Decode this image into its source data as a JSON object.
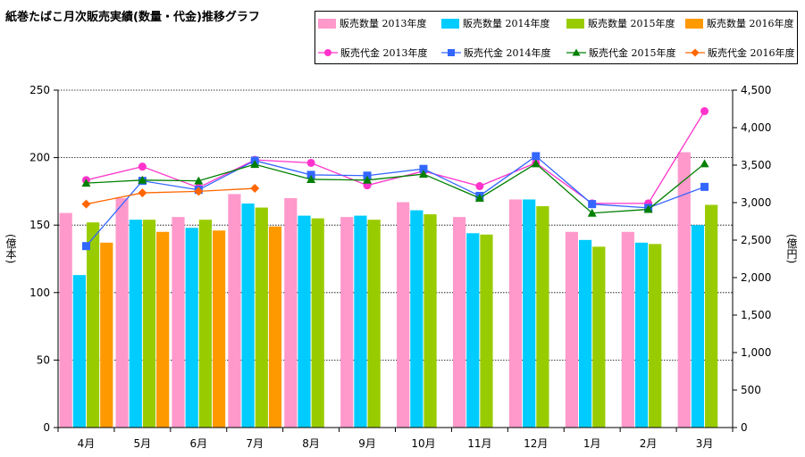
{
  "chart_data": {
    "type": "bar",
    "title": "紙巻たばこ月次販売実績(数量・代金)推移グラフ",
    "categories": [
      "4月",
      "5月",
      "6月",
      "7月",
      "8月",
      "9月",
      "10月",
      "11月",
      "12月",
      "1月",
      "2月",
      "3月"
    ],
    "left_axis": {
      "label": "(億本)",
      "range": [
        0,
        250
      ],
      "ticks": [
        0,
        50,
        100,
        150,
        200,
        250
      ],
      "tick_labels": [
        "0",
        "50",
        "100",
        "150",
        "200",
        "250"
      ]
    },
    "right_axis": {
      "label": "(億円)",
      "range": [
        0,
        4500
      ],
      "ticks": [
        0,
        500,
        1000,
        1500,
        2000,
        2500,
        3000,
        3500,
        4000,
        4500
      ],
      "tick_labels": [
        "0",
        "500",
        "1,000",
        "1,500",
        "2,000",
        "2,500",
        "3,000",
        "3,500",
        "4,000",
        "4,500"
      ]
    },
    "grid": "horizontal dotted",
    "legend_position": "top-right",
    "bar_series": [
      {
        "name": "販売数量 2013年度",
        "color": "#ff99cc",
        "values": [
          159,
          170,
          156,
          173,
          170,
          156,
          167,
          156,
          169,
          145,
          145,
          204
        ]
      },
      {
        "name": "販売数量 2014年度",
        "color": "#00ccff",
        "values": [
          113,
          154,
          148,
          166,
          157,
          157,
          161,
          144,
          169,
          139,
          137,
          150
        ]
      },
      {
        "name": "販売数量 2015年度",
        "color": "#99cc00",
        "values": [
          152,
          154,
          154,
          163,
          155,
          154,
          158,
          143,
          164,
          134,
          136,
          165
        ]
      },
      {
        "name": "販売数量 2016年度",
        "color": "#ff9900",
        "values": [
          137,
          145,
          146,
          149,
          null,
          null,
          null,
          null,
          null,
          null,
          null,
          null
        ]
      }
    ],
    "line_series": [
      {
        "name": "販売代金 2013年度",
        "color": "#ff33cc",
        "marker": "circle",
        "values": [
          3300,
          3480,
          3200,
          3570,
          3530,
          3230,
          3420,
          3220,
          3530,
          2990,
          2990,
          4220
        ]
      },
      {
        "name": "販売代金 2014年度",
        "color": "#3366ff",
        "marker": "square",
        "values": [
          2420,
          3290,
          3170,
          3560,
          3370,
          3360,
          3450,
          3090,
          3620,
          2980,
          2930,
          3210
        ]
      },
      {
        "name": "販売代金 2015年度",
        "color": "#008000",
        "marker": "triangle",
        "values": [
          3260,
          3300,
          3290,
          3510,
          3310,
          3300,
          3380,
          3060,
          3520,
          2860,
          2910,
          3520
        ]
      },
      {
        "name": "販売代金 2016年度",
        "color": "#ff6600",
        "marker": "diamond",
        "values": [
          2980,
          3130,
          3150,
          3190,
          null,
          null,
          null,
          null,
          null,
          null,
          null,
          null
        ]
      }
    ]
  }
}
